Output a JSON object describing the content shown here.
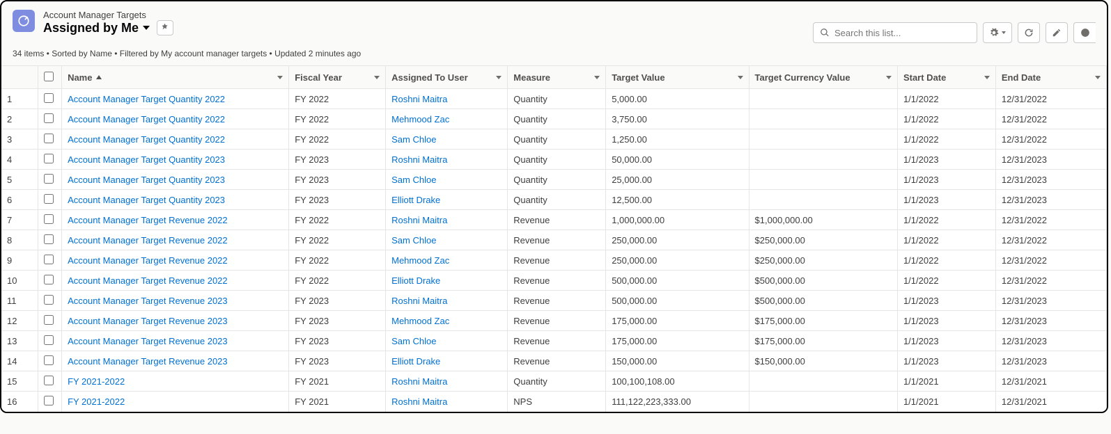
{
  "header": {
    "object_label": "Account Manager Targets",
    "view_name": "Assigned by Me",
    "status_line": "34 items • Sorted by Name • Filtered by My account manager targets • Updated 2 minutes ago",
    "search_placeholder": "Search this list..."
  },
  "columns": {
    "name": "Name",
    "fiscal_year": "Fiscal Year",
    "assigned_to": "Assigned To User",
    "measure": "Measure",
    "target_value": "Target Value",
    "target_currency": "Target Currency Value",
    "start_date": "Start Date",
    "end_date": "End Date"
  },
  "rows": [
    {
      "num": "1",
      "name": "Account Manager Target Quantity 2022",
      "fy": "FY 2022",
      "user": "Roshni Maitra",
      "measure": "Quantity",
      "tval": "5,000.00",
      "tcur": "",
      "sdate": "1/1/2022",
      "edate": "12/31/2022"
    },
    {
      "num": "2",
      "name": "Account Manager Target Quantity 2022",
      "fy": "FY 2022",
      "user": "Mehmood Zac",
      "measure": "Quantity",
      "tval": "3,750.00",
      "tcur": "",
      "sdate": "1/1/2022",
      "edate": "12/31/2022"
    },
    {
      "num": "3",
      "name": "Account Manager Target Quantity 2022",
      "fy": "FY 2022",
      "user": "Sam Chloe",
      "measure": "Quantity",
      "tval": "1,250.00",
      "tcur": "",
      "sdate": "1/1/2022",
      "edate": "12/31/2022"
    },
    {
      "num": "4",
      "name": "Account Manager Target Quantity 2023",
      "fy": "FY 2023",
      "user": "Roshni Maitra",
      "measure": "Quantity",
      "tval": "50,000.00",
      "tcur": "",
      "sdate": "1/1/2023",
      "edate": "12/31/2023"
    },
    {
      "num": "5",
      "name": "Account Manager Target Quantity 2023",
      "fy": "FY 2023",
      "user": "Sam Chloe",
      "measure": "Quantity",
      "tval": "25,000.00",
      "tcur": "",
      "sdate": "1/1/2023",
      "edate": "12/31/2023"
    },
    {
      "num": "6",
      "name": "Account Manager Target Quantity 2023",
      "fy": "FY 2023",
      "user": "Elliott Drake",
      "measure": "Quantity",
      "tval": "12,500.00",
      "tcur": "",
      "sdate": "1/1/2023",
      "edate": "12/31/2023"
    },
    {
      "num": "7",
      "name": "Account Manager Target Revenue 2022",
      "fy": "FY 2022",
      "user": "Roshni Maitra",
      "measure": "Revenue",
      "tval": "1,000,000.00",
      "tcur": "$1,000,000.00",
      "sdate": "1/1/2022",
      "edate": "12/31/2022"
    },
    {
      "num": "8",
      "name": "Account Manager Target Revenue 2022",
      "fy": "FY 2022",
      "user": "Sam Chloe",
      "measure": "Revenue",
      "tval": "250,000.00",
      "tcur": "$250,000.00",
      "sdate": "1/1/2022",
      "edate": "12/31/2022"
    },
    {
      "num": "9",
      "name": "Account Manager Target Revenue 2022",
      "fy": "FY 2022",
      "user": "Mehmood Zac",
      "measure": "Revenue",
      "tval": "250,000.00",
      "tcur": "$250,000.00",
      "sdate": "1/1/2022",
      "edate": "12/31/2022"
    },
    {
      "num": "10",
      "name": "Account Manager Target Revenue 2022",
      "fy": "FY 2022",
      "user": "Elliott Drake",
      "measure": "Revenue",
      "tval": "500,000.00",
      "tcur": "$500,000.00",
      "sdate": "1/1/2022",
      "edate": "12/31/2022"
    },
    {
      "num": "11",
      "name": "Account Manager Target Revenue 2023",
      "fy": "FY 2023",
      "user": "Roshni Maitra",
      "measure": "Revenue",
      "tval": "500,000.00",
      "tcur": "$500,000.00",
      "sdate": "1/1/2023",
      "edate": "12/31/2023"
    },
    {
      "num": "12",
      "name": "Account Manager Target Revenue 2023",
      "fy": "FY 2023",
      "user": "Mehmood Zac",
      "measure": "Revenue",
      "tval": "175,000.00",
      "tcur": "$175,000.00",
      "sdate": "1/1/2023",
      "edate": "12/31/2023"
    },
    {
      "num": "13",
      "name": "Account Manager Target Revenue 2023",
      "fy": "FY 2023",
      "user": "Sam Chloe",
      "measure": "Revenue",
      "tval": "175,000.00",
      "tcur": "$175,000.00",
      "sdate": "1/1/2023",
      "edate": "12/31/2023"
    },
    {
      "num": "14",
      "name": "Account Manager Target Revenue 2023",
      "fy": "FY 2023",
      "user": "Elliott Drake",
      "measure": "Revenue",
      "tval": "150,000.00",
      "tcur": "$150,000.00",
      "sdate": "1/1/2023",
      "edate": "12/31/2023"
    },
    {
      "num": "15",
      "name": "FY 2021-2022",
      "fy": "FY 2021",
      "user": "Roshni Maitra",
      "measure": "Quantity",
      "tval": "100,100,108.00",
      "tcur": "",
      "sdate": "1/1/2021",
      "edate": "12/31/2021"
    },
    {
      "num": "16",
      "name": "FY 2021-2022",
      "fy": "FY 2021",
      "user": "Roshni Maitra",
      "measure": "NPS",
      "tval": "111,122,223,333.00",
      "tcur": "",
      "sdate": "1/1/2021",
      "edate": "12/31/2021"
    }
  ],
  "colors": {
    "link": "#0070d2",
    "icon_bg": "#7f8de1",
    "border": "#e5e5e5",
    "header_bg": "#fafaf9"
  }
}
